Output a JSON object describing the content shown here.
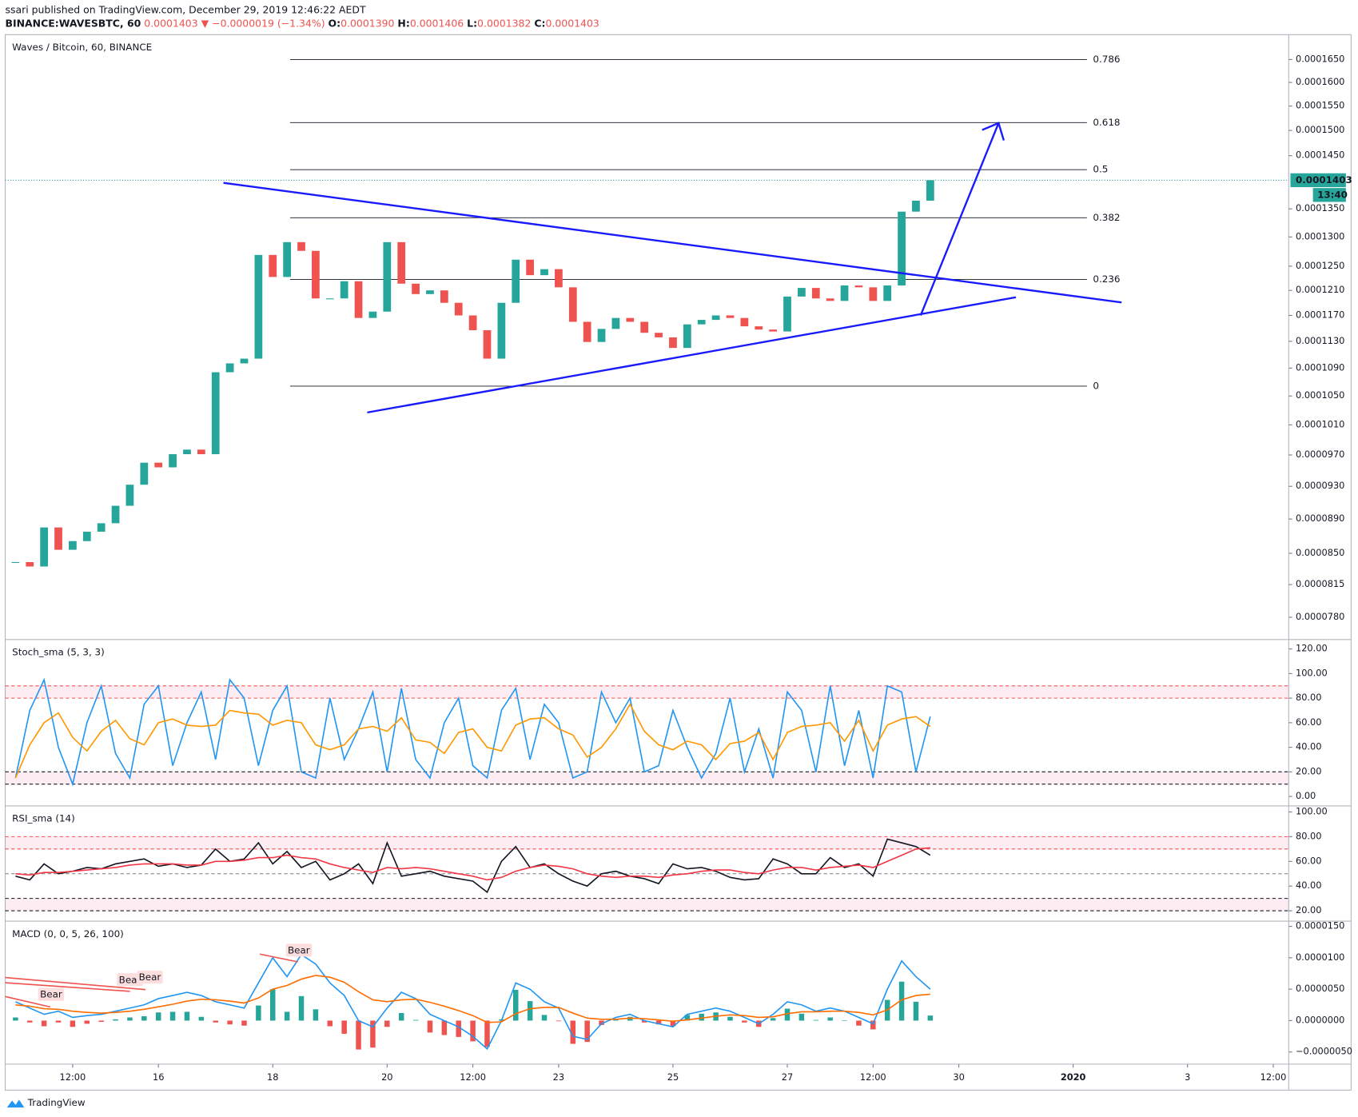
{
  "header": {
    "line1": "ssari published on TradingView.com, December 29, 2019 12:46:22 AEDT",
    "symbol": "BINANCE:WAVESBTC, 60",
    "price": "0.0001403",
    "arrow": "▼",
    "change": "−0.0000019 (−1.34%)",
    "o_label": "O:",
    "o": "0.0001390",
    "h_label": "H:",
    "h": "0.0001406",
    "l_label": "L:",
    "l": "0.0001382",
    "c_label": "C:",
    "c": "0.0001403"
  },
  "chart_data": [
    {
      "type": "candlestick",
      "title": "Waves / Bitcoin, 60, BINANCE",
      "log_scale": true,
      "x": [
        13.5,
        13.75,
        14,
        14.25,
        14.5,
        14.75,
        15,
        15.25,
        15.5,
        15.75,
        16,
        16.25,
        16.5,
        16.75,
        17,
        17.25,
        17.5,
        17.75,
        18,
        18.25,
        18.5,
        18.75,
        19,
        19.25,
        19.5,
        19.75,
        20,
        20.25,
        20.5,
        20.75,
        21,
        21.25,
        21.5,
        21.75,
        22,
        22.25,
        22.5,
        22.75,
        23,
        23.25,
        23.5,
        23.75,
        24,
        24.25,
        24.5,
        24.75,
        25,
        25.25,
        25.5,
        25.75,
        26,
        26.25,
        26.5,
        26.75,
        27,
        27.25,
        27.5,
        27.75,
        28,
        28.25,
        28.5,
        28.75,
        29,
        29.25,
        29.5
      ],
      "xlim": [
        13.32,
        35.77
      ],
      "xticks": [
        {
          "value": 14.5,
          "label": "12:00"
        },
        16,
        18,
        20,
        {
          "value": 21.5,
          "label": "12:00"
        },
        23,
        25,
        27,
        {
          "value": 28.5,
          "label": "12:00"
        },
        30,
        {
          "value": 32,
          "label": "2020"
        },
        {
          "value": 34,
          "label": "3"
        },
        {
          "value": 35.5,
          "label": "12:00"
        }
      ],
      "series": [
        {
          "color_up": "#26a69a",
          "color_down": "#ef5350",
          "values": [
            8.4e-05,
            8.35e-05,
            8.8e-05,
            8.54e-05,
            8.64e-05,
            8.75e-05,
            8.85e-05,
            9.06e-05,
            9.32e-05,
            9.6e-05,
            9.54e-05,
            9.71e-05,
            9.77e-05,
            9.71e-05,
            0.0001084,
            0.0001097,
            0.0001104,
            0.0001269,
            0.0001232,
            0.0001291,
            0.0001276,
            0.0001197,
            0.0001197,
            0.0001225,
            0.0001166,
            0.0001176,
            0.0001291,
            0.0001221,
            0.0001204,
            0.000121,
            0.000119,
            0.000117,
            0.0001147,
            0.0001104,
            0.000119,
            0.0001261,
            0.0001235,
            0.0001245,
            0.0001215,
            0.000116,
            0.0001129,
            0.0001149,
            0.0001166,
            0.000116,
            0.0001143,
            0.0001136,
            0.000112,
            0.0001156,
            0.0001163,
            0.000117,
            0.0001166,
            0.0001153,
            0.0001148,
            0.0001145,
            0.00012,
            0.0001214,
            0.0001197,
            0.0001193,
            0.0001218,
            0.0001215,
            0.0001193,
            0.0001218,
            0.0001345,
            0.0001365,
            0.0001403
          ]
        }
      ],
      "ylim": [
        7.57e-05,
        0.0001706
      ],
      "yticks": [
        {
          "value": 0.000165,
          "label": "0.0001650"
        },
        {
          "value": 0.00016,
          "label": "0.0001600"
        },
        {
          "value": 0.000155,
          "label": "0.0001550"
        },
        {
          "value": 0.00015,
          "label": "0.0001500"
        },
        {
          "value": 0.000145,
          "label": "0.0001450"
        },
        {
          "value": 0.000135,
          "label": "0.0001350"
        },
        {
          "value": 0.00013,
          "label": "0.0001300"
        },
        {
          "value": 0.000125,
          "label": "0.0001250"
        },
        {
          "value": 0.000121,
          "label": "0.0001210"
        },
        {
          "value": 0.000117,
          "label": "0.0001170"
        },
        {
          "value": 0.000113,
          "label": "0.0001130"
        },
        {
          "value": 0.000109,
          "label": "0.0001090"
        },
        {
          "value": 0.000105,
          "label": "0.0001050"
        },
        {
          "value": 0.000101,
          "label": "0.0001010"
        },
        {
          "value": 9.7e-05,
          "label": "0.0000970"
        },
        {
          "value": 9.3e-05,
          "label": "0.0000930"
        },
        {
          "value": 8.9e-05,
          "label": "0.0000890"
        },
        {
          "value": 8.5e-05,
          "label": "0.0000850"
        },
        {
          "value": 8.15e-05,
          "label": "0.0000815"
        },
        {
          "value": 7.8e-05,
          "label": "0.0000780"
        }
      ],
      "last_price": {
        "value": 0.0001403,
        "label": "0.0001403"
      },
      "last_time": "13:40",
      "last_color": "#26a69a",
      "fib": [
        {
          "level": 0.786,
          "price": 0.000165
        },
        {
          "level": 0.618,
          "price": 0.0001516
        },
        {
          "level": 0.5,
          "price": 0.0001423
        },
        {
          "level": 0.382,
          "price": 0.0001334
        },
        {
          "level": 0.236,
          "price": 0.0001228
        },
        {
          "level": 0,
          "price": 0.0001064
        }
      ],
      "grid": false
    },
    {
      "type": "line",
      "title": "Stoch_sma (5, 3, 3)",
      "series": [
        {
          "color": "#2196f3",
          "values": [
            15,
            70,
            95,
            40,
            10,
            60,
            90,
            35,
            15,
            75,
            90,
            25,
            60,
            85,
            30,
            95,
            80,
            25,
            70,
            90,
            20,
            15,
            80,
            30,
            55,
            85,
            20,
            88,
            30,
            15,
            60,
            80,
            25,
            15,
            70,
            88,
            30,
            75,
            60,
            15,
            20,
            85,
            60,
            80,
            20,
            25,
            70,
            40,
            15,
            35,
            80,
            20,
            55,
            15,
            85,
            70,
            20,
            90,
            25,
            70,
            15,
            90,
            85,
            20,
            65
          ]
        },
        {
          "color": "#ff9800",
          "values": [
            15,
            42,
            60,
            68,
            48,
            37,
            53,
            62,
            47,
            42,
            60,
            63,
            58,
            57,
            58,
            70,
            68,
            67,
            58,
            62,
            60,
            42,
            38,
            42,
            55,
            57,
            53,
            64,
            46,
            44,
            35,
            52,
            55,
            40,
            37,
            58,
            63,
            64,
            55,
            50,
            32,
            40,
            55,
            75,
            53,
            42,
            38,
            45,
            42,
            30,
            43,
            45,
            52,
            30,
            52,
            57,
            58,
            60,
            45,
            62,
            37,
            58,
            63,
            65,
            57
          ]
        }
      ],
      "ylim": [
        -7.7,
        127.7
      ],
      "yticks": [
        {
          "value": 120,
          "label": "120.00"
        },
        {
          "value": 100,
          "label": "100.00"
        },
        {
          "value": 80,
          "label": "80.00"
        },
        {
          "value": 60,
          "label": "60.00"
        },
        {
          "value": 40,
          "label": "40.00"
        },
        {
          "value": 20,
          "label": "20.00"
        },
        {
          "value": 0,
          "label": "0.00"
        }
      ],
      "bands": [
        [
          80,
          90
        ],
        [
          10,
          20
        ]
      ]
    },
    {
      "type": "line",
      "title": "RSI_sma (14)",
      "series": [
        {
          "color": "#131722",
          "values": [
            48,
            45,
            58,
            50,
            52,
            55,
            54,
            58,
            60,
            62,
            56,
            58,
            55,
            57,
            70,
            60,
            62,
            75,
            58,
            68,
            55,
            60,
            45,
            50,
            58,
            42,
            75,
            48,
            50,
            52,
            48,
            46,
            44,
            35,
            60,
            72,
            55,
            58,
            50,
            44,
            40,
            50,
            52,
            48,
            46,
            42,
            58,
            54,
            55,
            52,
            47,
            45,
            46,
            62,
            58,
            50,
            50,
            63,
            55,
            58,
            48,
            78,
            75,
            72,
            65
          ]
        },
        {
          "color": "#f23645",
          "values": [
            50,
            49,
            51,
            51,
            52,
            53,
            54,
            55,
            57,
            58,
            58,
            58,
            57,
            57,
            60,
            60,
            61,
            63,
            63,
            65,
            63,
            62,
            58,
            55,
            53,
            51,
            55,
            54,
            55,
            54,
            52,
            50,
            48,
            45,
            47,
            52,
            55,
            57,
            56,
            54,
            50,
            48,
            47,
            48,
            48,
            47,
            49,
            50,
            52,
            53,
            53,
            51,
            50,
            53,
            55,
            55,
            53,
            55,
            56,
            57,
            55,
            60,
            65,
            70,
            71
          ]
        }
      ],
      "ylim": [
        11.6,
        104.9
      ],
      "yticks": [
        {
          "value": 100,
          "label": "100.00"
        },
        {
          "value": 80,
          "label": "80.00"
        },
        {
          "value": 60,
          "label": "60.00"
        },
        {
          "value": 40,
          "label": "40.00"
        },
        {
          "value": 20,
          "label": "20.00"
        }
      ],
      "bands": [
        [
          70,
          80
        ],
        [
          20,
          30
        ]
      ],
      "midline": 50
    },
    {
      "type": "macd",
      "title": "MACD (0, 0, 5, 26, 100)",
      "series": [
        {
          "color": "#2196f3",
          "values": [
            3e-06,
            2e-06,
            1e-06,
            1.5e-06,
            5e-07,
            8e-07,
            1e-06,
            1.5e-06,
            2e-06,
            2.5e-06,
            3.5e-06,
            4e-06,
            4.5e-06,
            4e-06,
            3e-06,
            2.5e-06,
            2e-06,
            6e-06,
            1e-05,
            7e-06,
            1.05e-05,
            9e-06,
            6e-06,
            4e-06,
            0,
            -1e-06,
            2e-06,
            4.5e-06,
            3.5e-06,
            1e-06,
            0,
            -1e-06,
            -2.5e-06,
            -4.5e-06,
            0,
            6e-06,
            5e-06,
            3e-06,
            2e-06,
            -2.5e-06,
            -3e-06,
            -5e-07,
            5e-07,
            1e-06,
            0,
            -5e-07,
            -1e-06,
            1e-06,
            1.5e-06,
            2e-06,
            1.5e-06,
            5e-07,
            -5e-07,
            1e-06,
            3e-06,
            2.5e-06,
            1.5e-06,
            2e-06,
            1.5e-06,
            5e-07,
            -5e-07,
            5e-06,
            9.5e-06,
            7e-06,
            5e-06
          ]
        },
        {
          "color": "#ff6d00",
          "values": [
            2.5e-06,
            2.3e-06,
            1.9e-06,
            1.8e-06,
            1.5e-06,
            1.3e-06,
            1.2e-06,
            1.3e-06,
            1.5e-06,
            1.8e-06,
            2.2e-06,
            2.6e-06,
            3.1e-06,
            3.4e-06,
            3.3e-06,
            3.1e-06,
            2.8e-06,
            3.6e-06,
            5e-06,
            5.6e-06,
            6.6e-06,
            7.2e-06,
            6.9e-06,
            6.1e-06,
            4.6e-06,
            3.3e-06,
            3e-06,
            3.3e-06,
            3.4e-06,
            2.9e-06,
            2.3e-06,
            1.6e-06,
            8e-07,
            -3e-07,
            -2e-07,
            1.1e-06,
            1.9e-06,
            2.1e-06,
            2.1e-06,
            1.2e-06,
            4e-07,
            2e-07,
            2e-07,
            4e-07,
            3e-07,
            1e-07,
            -1e-07,
            1e-07,
            4e-07,
            7e-07,
            9e-07,
            8e-07,
            5e-07,
            6e-07,
            1.1e-06,
            1.4e-06,
            1.4e-06,
            1.5e-06,
            1.5e-06,
            1.3e-06,
            9e-07,
            1.7e-06,
            3.3e-06,
            4e-06,
            4.2e-06
          ]
        }
      ],
      "histogram": {
        "color_up": "#26a69a",
        "color_down": "#ef5350",
        "values": [
          5e-07,
          -3e-07,
          -9e-07,
          -3e-07,
          -1e-06,
          -5e-07,
          -2e-07,
          2e-07,
          5e-07,
          7e-07,
          1.3e-06,
          1.4e-06,
          1.4e-06,
          6e-07,
          -3e-07,
          -6e-07,
          -8e-07,
          2.4e-06,
          5e-06,
          1.4e-06,
          3.9e-06,
          1.8e-06,
          -9e-07,
          -2.1e-06,
          -4.6e-06,
          -4.3e-06,
          -1e-06,
          1.2e-06,
          1e-07,
          -1.9e-06,
          -2.3e-06,
          -2.6e-06,
          -3.3e-06,
          -4.2e-06,
          2e-07,
          4.9e-06,
          3.1e-06,
          9e-07,
          -1e-07,
          -3.7e-06,
          -3.4e-06,
          -7e-07,
          3e-07,
          6e-07,
          -3e-07,
          -6e-07,
          -9e-07,
          9e-07,
          1.1e-06,
          1.3e-06,
          6e-07,
          -3e-07,
          -1e-06,
          4e-07,
          1.9e-06,
          1.1e-06,
          1e-07,
          5e-07,
          0,
          -8e-07,
          -1.4e-06,
          3.3e-06,
          6.2e-06,
          3e-06,
          8e-07
        ]
      },
      "ylim": [
        -6.93e-06,
        1.583e-05
      ],
      "yticks": [
        {
          "value": 1.5e-05,
          "label": "0.0000150"
        },
        {
          "value": 1e-05,
          "label": "0.0000100"
        },
        {
          "value": 5e-06,
          "label": "0.0000050"
        },
        {
          "value": 0,
          "label": "0.0000000"
        },
        {
          "value": -5e-06,
          "label": "−0.0000050"
        }
      ],
      "annotations": [
        {
          "text": "Bear"
        },
        {
          "text": "Bear"
        },
        {
          "text": "Bear"
        },
        {
          "text": "Bear"
        }
      ]
    }
  ],
  "footer": {
    "brand": "TradingView"
  }
}
